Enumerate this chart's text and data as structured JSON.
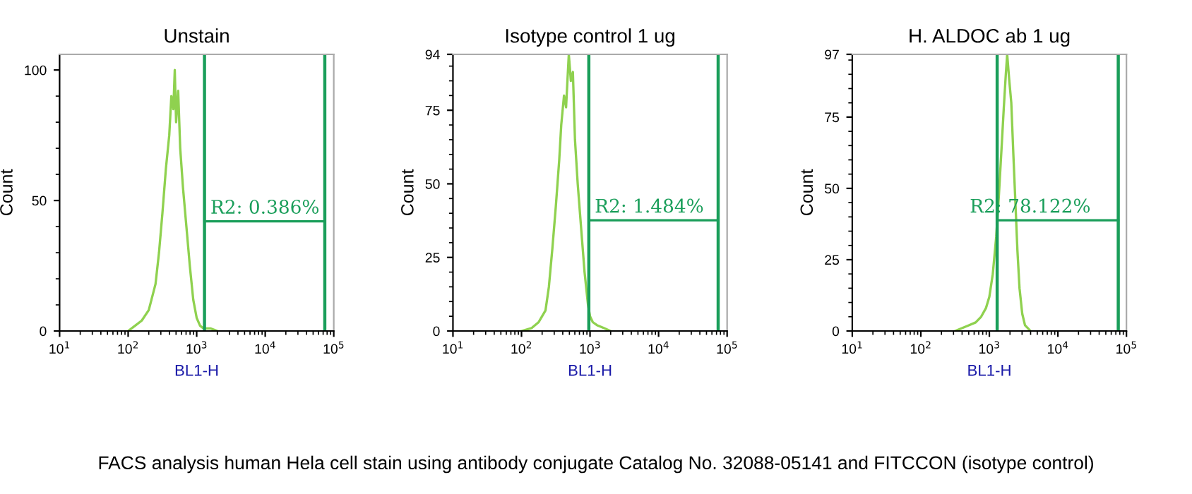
{
  "chart_data": [
    {
      "type": "line",
      "title": "Unstain",
      "xlabel": "BL1-H",
      "ylabel": "Count",
      "log": "x",
      "xlim": [
        10,
        100000
      ],
      "ylim": [
        0,
        106
      ],
      "xticks": [
        {
          "value": 10,
          "label": "10$^{1}$"
        },
        {
          "value": 100,
          "label": "10$^{2}$"
        },
        {
          "value": 1000,
          "label": "10$^{3}$"
        },
        {
          "value": 10000,
          "label": "10$^{4}$"
        },
        {
          "value": 100000,
          "label": "10$^{5}$"
        }
      ],
      "yticks": [
        0,
        50,
        100
      ],
      "series": [
        {
          "color": "#8fd14f",
          "x": [
            100,
            126,
            158,
            200,
            251,
            282,
            316,
            355,
            398,
            427,
            457,
            479,
            501,
            537,
            575,
            631,
            708,
            794,
            891,
            1000,
            1122,
            1259,
            1585,
            1995
          ],
          "values": [
            0,
            2,
            4,
            8,
            18,
            30,
            45,
            62,
            75,
            90,
            85,
            100,
            80,
            92,
            70,
            55,
            40,
            25,
            12,
            5,
            2,
            1,
            1,
            0
          ]
        },
        {
          "color": "#1a9e5a",
          "x": [
            1300,
            74000
          ],
          "values": [
            42,
            42
          ]
        }
      ],
      "ref_lines": [
        {
          "axis": "x",
          "value": 1300,
          "color": "#1a9e5a"
        },
        {
          "axis": "x",
          "value": 74000,
          "color": "#1a9e5a"
        }
      ],
      "annotations": [
        "R2: 0.386%",
        "FACS analysis human Hela cell stain using antibody conjugate Catalog No. 32088-05141 and FITCCON (isotype control)"
      ]
    },
    {
      "type": "line",
      "title": "Isotype control 1 ug",
      "xlabel": "BL1-H",
      "ylabel": "Count",
      "log": "x",
      "xlim": [
        10,
        100000
      ],
      "ylim": [
        0,
        94
      ],
      "xticks": [
        {
          "value": 10,
          "label": "10$^{1}$"
        },
        {
          "value": 100,
          "label": "10$^{2}$"
        },
        {
          "value": 1000,
          "label": "10$^{3}$"
        },
        {
          "value": 10000,
          "label": "10$^{4}$"
        },
        {
          "value": 100000,
          "label": "10$^{5}$"
        }
      ],
      "yticks": [
        0,
        25,
        50,
        75,
        94
      ],
      "series": [
        {
          "color": "#8fd14f",
          "x": [
            100,
            141,
            178,
            224,
            251,
            282,
            316,
            355,
            380,
            417,
            447,
            490,
            525,
            562,
            603,
            661,
            741,
            832,
            933,
            1000,
            1096,
            1259,
            1585,
            1995
          ],
          "values": [
            0,
            1,
            3,
            7,
            15,
            28,
            42,
            58,
            70,
            80,
            76,
            94,
            85,
            88,
            65,
            50,
            35,
            20,
            9,
            5,
            3,
            2,
            1,
            0
          ]
        },
        {
          "color": "#1a9e5a",
          "x": [
            960,
            74000
          ],
          "values": [
            37.6,
            37.6
          ]
        }
      ],
      "ref_lines": [
        {
          "axis": "x",
          "value": 960,
          "color": "#1a9e5a"
        },
        {
          "axis": "x",
          "value": 74000,
          "color": "#1a9e5a"
        }
      ],
      "annotations": [
        "R2: 1.484%"
      ]
    },
    {
      "type": "line",
      "title": "H. ALDOC ab 1 ug",
      "xlabel": "BL1-H",
      "ylabel": "Count",
      "log": "x",
      "xlim": [
        10,
        100000
      ],
      "ylim": [
        0,
        97
      ],
      "xticks": [
        {
          "value": 10,
          "label": "10$^{1}$"
        },
        {
          "value": 100,
          "label": "10$^{2}$"
        },
        {
          "value": 1000,
          "label": "10$^{3}$"
        },
        {
          "value": 10000,
          "label": "10$^{4}$"
        },
        {
          "value": 100000,
          "label": "10$^{5}$"
        }
      ],
      "yticks": [
        0,
        25,
        50,
        75,
        97
      ],
      "series": [
        {
          "color": "#8fd14f",
          "x": [
            316,
            398,
            501,
            631,
            759,
            891,
            1000,
            1122,
            1259,
            1380,
            1514,
            1622,
            1738,
            1820,
            1950,
            2089,
            2239,
            2399,
            2570,
            2754,
            3020,
            3311,
            3631,
            3981
          ],
          "values": [
            0,
            1,
            2,
            3,
            5,
            8,
            12,
            20,
            33,
            48,
            65,
            78,
            90,
            97,
            88,
            80,
            62,
            45,
            28,
            15,
            6,
            2,
            1,
            0
          ]
        },
        {
          "color": "#1a9e5a",
          "x": [
            1300,
            76000
          ],
          "values": [
            38.8,
            38.8
          ]
        }
      ],
      "ref_lines": [
        {
          "axis": "x",
          "value": 1300,
          "color": "#1a9e5a"
        },
        {
          "axis": "x",
          "value": 76000,
          "color": "#1a9e5a"
        }
      ],
      "annotations": [
        "R2: 78.122%"
      ]
    }
  ]
}
